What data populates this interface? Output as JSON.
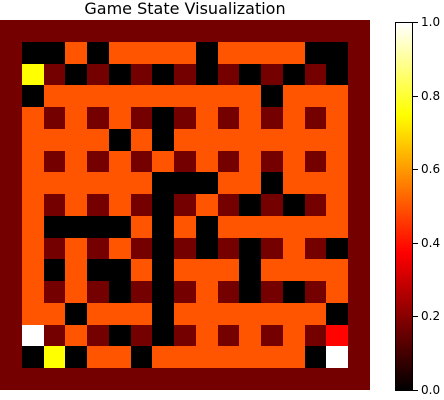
{
  "title": "Game State Visualization",
  "colormap": {
    "name": "hot",
    "stops": [
      {
        "v": 0.0,
        "color": "#000000"
      },
      {
        "v": 0.375,
        "color": "#ff0000"
      },
      {
        "v": 0.75,
        "color": "#ffff00"
      },
      {
        "v": 1.0,
        "color": "#ffffff"
      }
    ]
  },
  "colorbar": {
    "vmin": 0.0,
    "vmax": 1.0,
    "ticks": [
      {
        "value": 0.0,
        "label": "0.0"
      },
      {
        "value": 0.2,
        "label": "0.2"
      },
      {
        "value": 0.4,
        "label": "0.4"
      },
      {
        "value": 0.6,
        "label": "0.6"
      },
      {
        "value": 0.8,
        "label": "0.8"
      },
      {
        "value": 1.0,
        "label": "1.0"
      }
    ]
  },
  "legend_values": {
    "wall": 0.17,
    "floor": 0.5,
    "empty": 0.0,
    "agent": 0.75,
    "goal": 1.0,
    "marker": 0.38
  },
  "grid": [
    "WWWWWWWWWWWWWWWWW",
    "W..F.FFFF.FFFF..W",
    "WAW.W.W.W.W.W.W.W",
    "W.FFFFFFFFFF.FFFW",
    "WFWFWFW.WFWFWFWFW",
    "WFFFF.F.FFFFFFFFW",
    "WFWFWFWFWFWFWFWFW",
    "WFFFFFF...FF.FFFW",
    "WFWFWFW.WFW.W.WFW",
    "WF....F.F.FFFFFFW",
    "WFWFWFW.W.W.WFW.W",
    "WF.F..F.FFF.FFFFW",
    "WFWFW.W.WFW.W.WFW",
    "WFF.FFF.FFFFFFF.W",
    "WGWFW.W.WFWFWFWRW",
    "W.A.FF.FFFFFFF.GW",
    "WWWWWWWWWWWWWWWWW"
  ]
}
